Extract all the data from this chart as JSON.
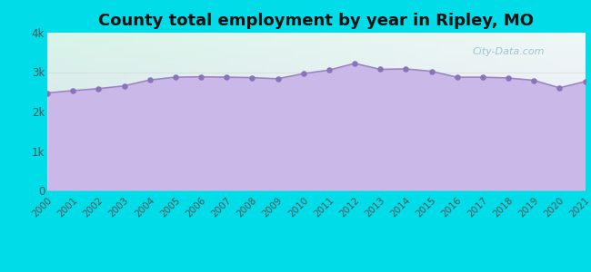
{
  "title": "County total employment by year in Ripley, MO",
  "title_fontsize": 13,
  "title_fontweight": "bold",
  "years": [
    2000,
    2001,
    2002,
    2003,
    2004,
    2005,
    2006,
    2007,
    2008,
    2009,
    2010,
    2011,
    2012,
    2013,
    2014,
    2015,
    2016,
    2017,
    2018,
    2019,
    2020,
    2021
  ],
  "values": [
    2470,
    2530,
    2580,
    2650,
    2800,
    2870,
    2880,
    2870,
    2860,
    2830,
    2960,
    3050,
    3220,
    3070,
    3080,
    3020,
    2870,
    2870,
    2850,
    2790,
    2600,
    2760
  ],
  "line_color": "#9b84c2",
  "fill_color": "#c9b8e8",
  "fill_alpha": 1.0,
  "marker_color": "#8874b8",
  "marker_size": 22,
  "background_outer": "#00dde8",
  "bg_top_left": "#d8f5e8",
  "bg_bottom_right": "#e8e4f5",
  "ytick_labels": [
    "0",
    "1k",
    "2k",
    "3k",
    "4k"
  ],
  "ytick_values": [
    0,
    1000,
    2000,
    3000,
    4000
  ],
  "ylim": [
    0,
    4000
  ],
  "watermark": "City-Data.com",
  "tick_color": "#00dde8",
  "grid_color": "#cccccc",
  "label_color": "#555555"
}
